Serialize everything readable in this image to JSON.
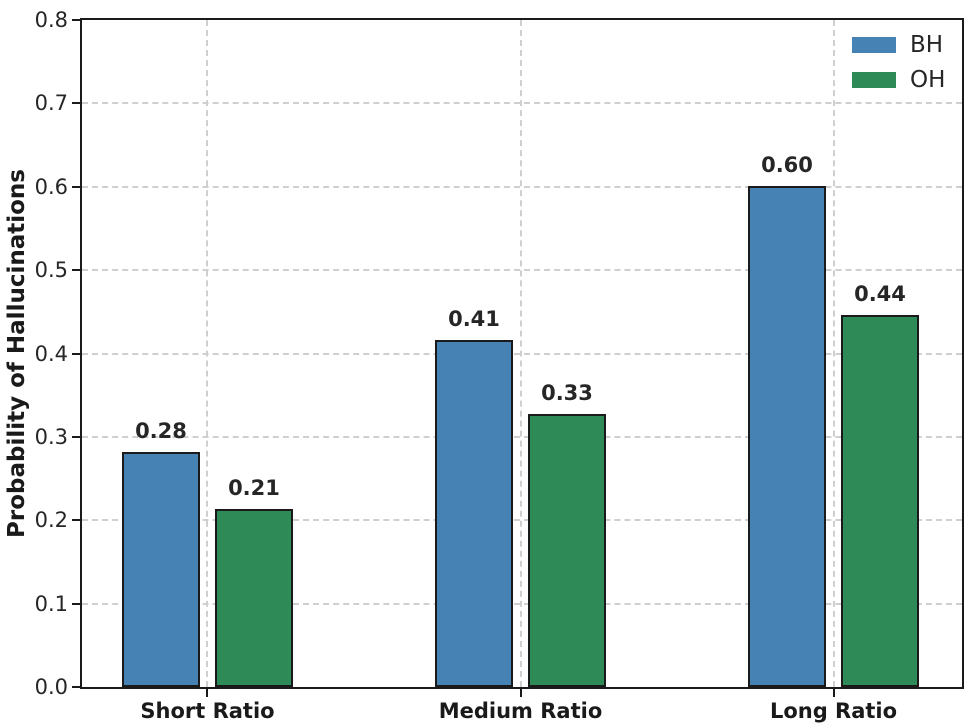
{
  "chart_data": {
    "type": "bar",
    "title": "",
    "xlabel": "",
    "ylabel": "Probability of Hallucinations",
    "categories": [
      "Short Ratio",
      "Medium Ratio",
      "Long Ratio"
    ],
    "series": [
      {
        "name": "BH",
        "color": "#4682b4",
        "values": [
          0.279,
          0.414,
          0.598
        ],
        "labels": [
          "0.28",
          "0.41",
          "0.60"
        ]
      },
      {
        "name": "OH",
        "color": "#2e8b57",
        "values": [
          0.211,
          0.325,
          0.444
        ],
        "labels": [
          "0.21",
          "0.33",
          "0.44"
        ]
      }
    ],
    "ylim": [
      0.0,
      0.8
    ],
    "yticks": [
      0.0,
      0.1,
      0.2,
      0.3,
      0.4,
      0.5,
      0.6,
      0.7,
      0.8
    ],
    "ytick_labels": [
      "0.0",
      "0.1",
      "0.2",
      "0.3",
      "0.4",
      "0.5",
      "0.6",
      "0.7",
      "0.8"
    ],
    "grid": "dashed",
    "grid_color": "#cfcfcf",
    "bar_edge_color": "#1a1a1a",
    "legend_position": "upper right",
    "legend_frame": false
  }
}
